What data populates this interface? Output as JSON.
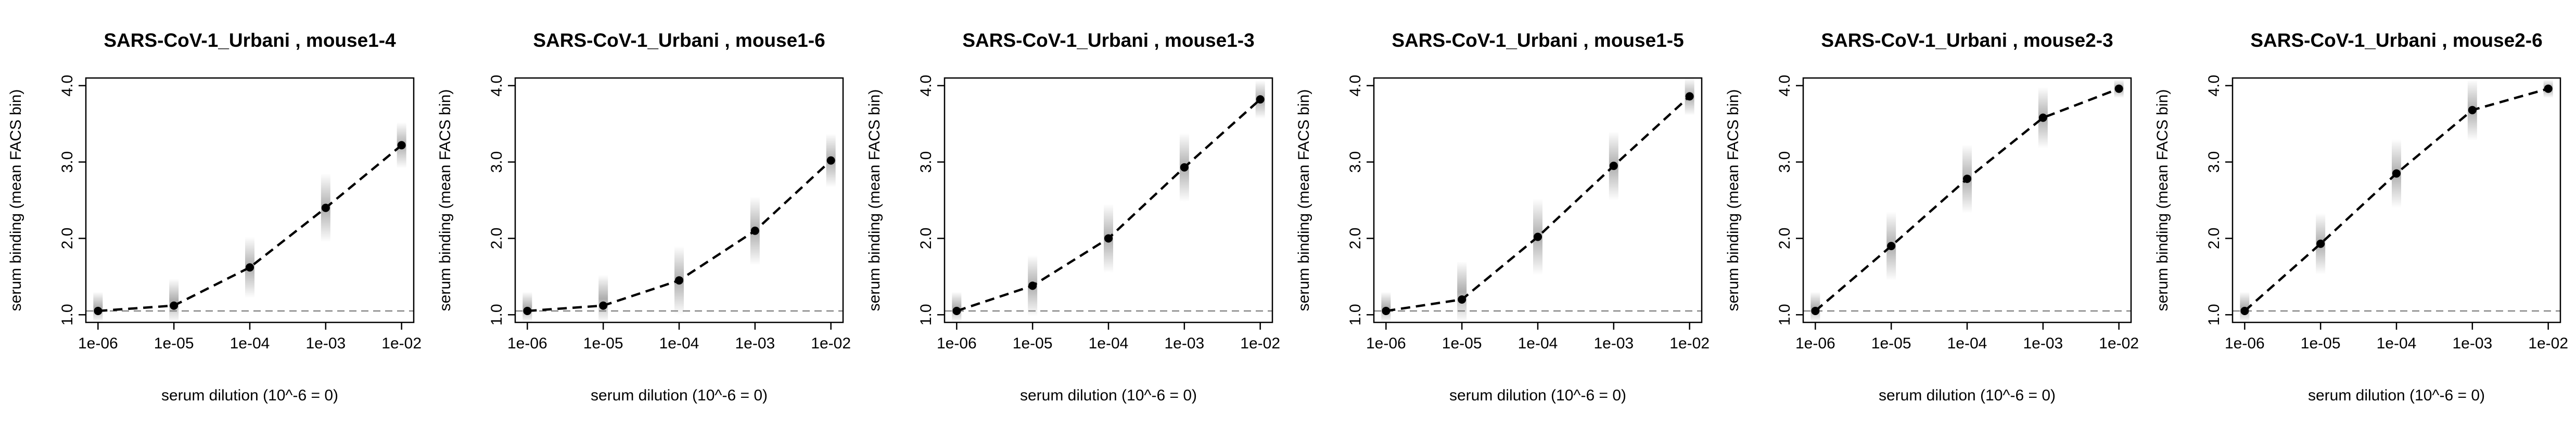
{
  "chart_data": [
    {
      "type": "line",
      "title": "SARS-CoV-1_Urbani , mouse1-4",
      "xlabel": "serum dilution (10^-6 = 0)",
      "ylabel": "serum binding (mean FACS bin)",
      "x_scale": "log",
      "x": [
        1e-06,
        1e-05,
        0.0001,
        0.001,
        0.01
      ],
      "x_tick_labels": [
        "1e-06",
        "1e-05",
        "1e-04",
        "1e-03",
        "1e-02"
      ],
      "y_tick_labels": [
        "1.0",
        "2.0",
        "3.0",
        "4.0"
      ],
      "ylim": [
        0.9,
        4.1
      ],
      "baseline": 1.05,
      "series": [
        {
          "values": [
            1.05,
            1.12,
            1.62,
            2.4,
            3.22
          ],
          "spread": [
            0.25,
            0.35,
            0.4,
            0.45,
            0.3
          ]
        }
      ]
    },
    {
      "type": "line",
      "title": "SARS-CoV-1_Urbani , mouse1-6",
      "xlabel": "serum dilution (10^-6 = 0)",
      "ylabel": "serum binding (mean FACS bin)",
      "x_scale": "log",
      "x": [
        1e-06,
        1e-05,
        0.0001,
        0.001,
        0.01
      ],
      "x_tick_labels": [
        "1e-06",
        "1e-05",
        "1e-04",
        "1e-03",
        "1e-02"
      ],
      "y_tick_labels": [
        "1.0",
        "2.0",
        "3.0",
        "4.0"
      ],
      "ylim": [
        0.9,
        4.1
      ],
      "baseline": 1.05,
      "series": [
        {
          "values": [
            1.05,
            1.12,
            1.45,
            2.1,
            3.02
          ],
          "spread": [
            0.25,
            0.4,
            0.45,
            0.45,
            0.35
          ]
        }
      ]
    },
    {
      "type": "line",
      "title": "SARS-CoV-1_Urbani , mouse1-3",
      "xlabel": "serum dilution (10^-6 = 0)",
      "ylabel": "serum binding (mean FACS bin)",
      "x_scale": "log",
      "x": [
        1e-06,
        1e-05,
        0.0001,
        0.001,
        0.01
      ],
      "x_tick_labels": [
        "1e-06",
        "1e-05",
        "1e-04",
        "1e-03",
        "1e-02"
      ],
      "y_tick_labels": [
        "1.0",
        "2.0",
        "3.0",
        "4.0"
      ],
      "ylim": [
        0.9,
        4.1
      ],
      "baseline": 1.05,
      "series": [
        {
          "values": [
            1.05,
            1.38,
            2.0,
            2.93,
            3.82
          ],
          "spread": [
            0.25,
            0.4,
            0.45,
            0.45,
            0.25
          ]
        }
      ]
    },
    {
      "type": "line",
      "title": "SARS-CoV-1_Urbani , mouse1-5",
      "xlabel": "serum dilution (10^-6 = 0)",
      "ylabel": "serum binding (mean FACS bin)",
      "x_scale": "log",
      "x": [
        1e-06,
        1e-05,
        0.0001,
        0.001,
        0.01
      ],
      "x_tick_labels": [
        "1e-06",
        "1e-05",
        "1e-04",
        "1e-03",
        "1e-02"
      ],
      "y_tick_labels": [
        "1.0",
        "2.0",
        "3.0",
        "4.0"
      ],
      "ylim": [
        0.9,
        4.1
      ],
      "baseline": 1.05,
      "series": [
        {
          "values": [
            1.05,
            1.2,
            2.02,
            2.95,
            3.86
          ],
          "spread": [
            0.25,
            0.5,
            0.5,
            0.45,
            0.25
          ]
        }
      ]
    },
    {
      "type": "line",
      "title": "SARS-CoV-1_Urbani , mouse2-3",
      "xlabel": "serum dilution (10^-6 = 0)",
      "ylabel": "serum binding (mean FACS bin)",
      "x_scale": "log",
      "x": [
        1e-06,
        1e-05,
        0.0001,
        0.001,
        0.01
      ],
      "x_tick_labels": [
        "1e-06",
        "1e-05",
        "1e-04",
        "1e-03",
        "1e-02"
      ],
      "y_tick_labels": [
        "1.0",
        "2.0",
        "3.0",
        "4.0"
      ],
      "ylim": [
        0.9,
        4.1
      ],
      "baseline": 1.05,
      "series": [
        {
          "values": [
            1.05,
            1.9,
            2.78,
            3.58,
            3.96
          ],
          "spread": [
            0.25,
            0.45,
            0.45,
            0.4,
            0.12
          ]
        }
      ]
    },
    {
      "type": "line",
      "title": "SARS-CoV-1_Urbani , mouse2-6",
      "xlabel": "serum dilution (10^-6 = 0)",
      "ylabel": "serum binding (mean FACS bin)",
      "x_scale": "log",
      "x": [
        1e-06,
        1e-05,
        0.0001,
        0.001,
        0.01
      ],
      "x_tick_labels": [
        "1e-06",
        "1e-05",
        "1e-04",
        "1e-03",
        "1e-02"
      ],
      "y_tick_labels": [
        "1.0",
        "2.0",
        "3.0",
        "4.0"
      ],
      "ylim": [
        0.9,
        4.1
      ],
      "baseline": 1.05,
      "series": [
        {
          "values": [
            1.05,
            1.93,
            2.85,
            3.68,
            3.96
          ],
          "spread": [
            0.25,
            0.4,
            0.45,
            0.4,
            0.12
          ]
        }
      ]
    }
  ]
}
